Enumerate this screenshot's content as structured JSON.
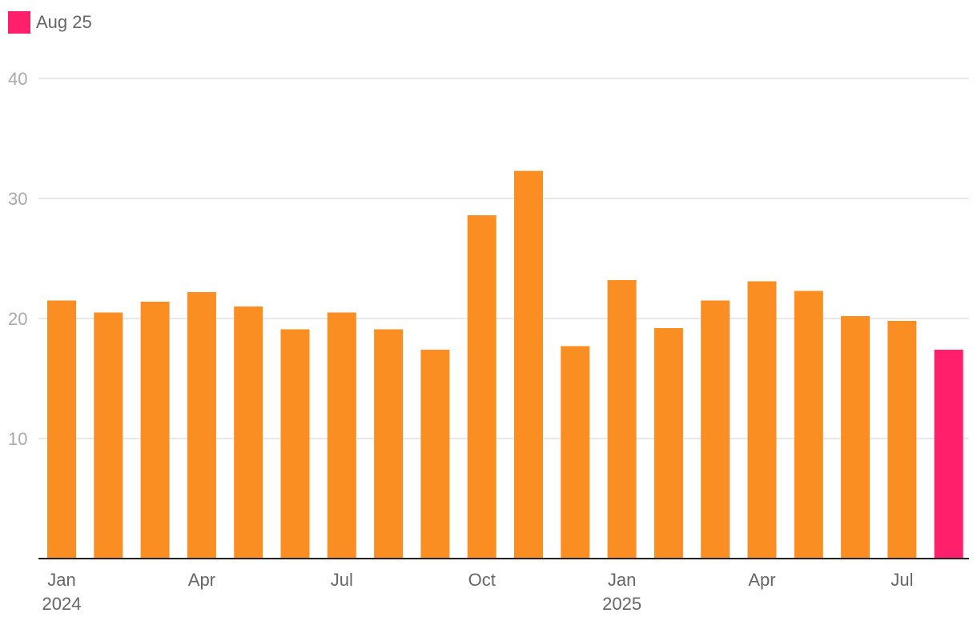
{
  "legend": {
    "label": "Aug 25",
    "color": "#FF1F6B"
  },
  "colors": {
    "bar": "#FA8E23",
    "highlight": "#FF1F6B",
    "grid": "#E0E0E0",
    "axis": "#222222",
    "y_tick_text": "#AAAAAA",
    "x_tick_text": "#666666"
  },
  "chart_data": {
    "type": "bar",
    "categories": [
      "Jan 2024",
      "Feb 2024",
      "Mar 2024",
      "Apr 2024",
      "May 2024",
      "Jun 2024",
      "Jul 2024",
      "Aug 2024",
      "Sep 2024",
      "Oct 2024",
      "Nov 2024",
      "Dec 2024",
      "Jan 2025",
      "Feb 2025",
      "Mar 2025",
      "Apr 2025",
      "May 2025",
      "Jun 2025",
      "Jul 2025",
      "Aug 2025"
    ],
    "values": [
      21.5,
      20.5,
      21.4,
      22.2,
      21.0,
      19.1,
      20.5,
      19.1,
      17.4,
      28.6,
      32.3,
      17.7,
      23.2,
      19.2,
      21.5,
      23.1,
      22.3,
      20.2,
      19.8,
      17.4
    ],
    "highlight_index": 19,
    "ylim": [
      0,
      40
    ],
    "yticks": [
      10,
      20,
      30,
      40
    ],
    "x_tick_labels": [
      {
        "index": 0,
        "month": "Jan",
        "year": "2024"
      },
      {
        "index": 3,
        "month": "Apr",
        "year": ""
      },
      {
        "index": 6,
        "month": "Jul",
        "year": ""
      },
      {
        "index": 9,
        "month": "Oct",
        "year": ""
      },
      {
        "index": 12,
        "month": "Jan",
        "year": "2025"
      },
      {
        "index": 15,
        "month": "Apr",
        "year": ""
      },
      {
        "index": 18,
        "month": "Jul",
        "year": ""
      }
    ],
    "grid": true,
    "legend_position": "top-left",
    "title": "",
    "xlabel": "",
    "ylabel": ""
  }
}
